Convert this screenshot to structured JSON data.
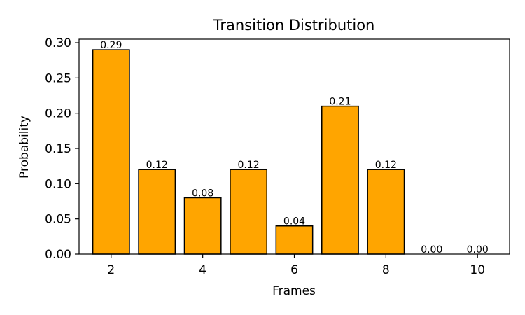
{
  "chart_data": {
    "type": "bar",
    "title": "Transition Distribution",
    "xlabel": "Frames",
    "ylabel": "Probability",
    "x": [
      2,
      3,
      4,
      5,
      6,
      7,
      8,
      9,
      10
    ],
    "values": [
      0.29,
      0.12,
      0.08,
      0.12,
      0.04,
      0.21,
      0.12,
      0.0,
      0.0
    ],
    "value_labels": [
      "0.29",
      "0.12",
      "0.08",
      "0.12",
      "0.04",
      "0.21",
      "0.12",
      "0.00",
      "0.00"
    ],
    "xlim": [
      1.3,
      10.7
    ],
    "ylim": [
      0,
      0.305
    ],
    "xticks": [
      2,
      4,
      6,
      8,
      10
    ],
    "xtick_labels": [
      "2",
      "4",
      "6",
      "8",
      "10"
    ],
    "yticks": [
      0,
      0.05,
      0.1,
      0.15,
      0.2,
      0.25,
      0.3
    ],
    "ytick_labels": [
      "0.00",
      "0.05",
      "0.10",
      "0.15",
      "0.20",
      "0.25",
      "0.30"
    ],
    "grid": false,
    "bar_color": "#ffa500",
    "edge_color": "#000000"
  }
}
